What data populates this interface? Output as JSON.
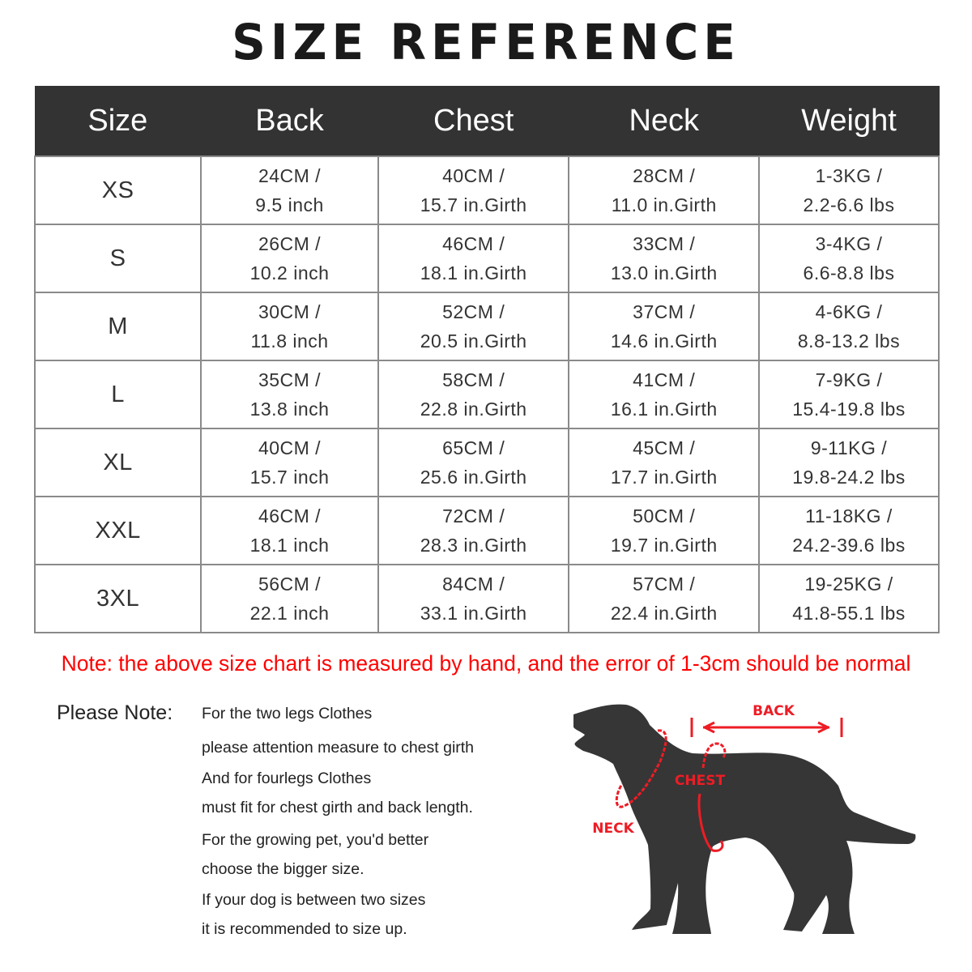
{
  "title": "SIZE REFERENCE",
  "table": {
    "headers": [
      "Size",
      "Back",
      "Chest",
      "Neck",
      "Weight"
    ],
    "rows": [
      {
        "size": "XS",
        "back": [
          "24CM /",
          "9.5 inch"
        ],
        "chest": [
          "40CM /",
          "15.7 in.Girth"
        ],
        "neck": [
          "28CM /",
          "11.0 in.Girth"
        ],
        "weight": [
          "1-3KG /",
          "2.2-6.6 lbs"
        ]
      },
      {
        "size": "S",
        "back": [
          "26CM /",
          "10.2 inch"
        ],
        "chest": [
          "46CM /",
          "18.1 in.Girth"
        ],
        "neck": [
          "33CM /",
          "13.0 in.Girth"
        ],
        "weight": [
          "3-4KG /",
          "6.6-8.8 lbs"
        ]
      },
      {
        "size": "M",
        "back": [
          "30CM /",
          "11.8 inch"
        ],
        "chest": [
          "52CM /",
          "20.5 in.Girth"
        ],
        "neck": [
          "37CM /",
          "14.6 in.Girth"
        ],
        "weight": [
          "4-6KG /",
          "8.8-13.2 lbs"
        ]
      },
      {
        "size": "L",
        "back": [
          "35CM /",
          "13.8 inch"
        ],
        "chest": [
          "58CM /",
          "22.8 in.Girth"
        ],
        "neck": [
          "41CM /",
          "16.1 in.Girth"
        ],
        "weight": [
          "7-9KG /",
          "15.4-19.8 lbs"
        ]
      },
      {
        "size": "XL",
        "back": [
          "40CM /",
          "15.7 inch"
        ],
        "chest": [
          "65CM /",
          "25.6 in.Girth"
        ],
        "neck": [
          "45CM /",
          "17.7 in.Girth"
        ],
        "weight": [
          "9-11KG /",
          "19.8-24.2 lbs"
        ]
      },
      {
        "size": "XXL",
        "back": [
          "46CM /",
          "18.1 inch"
        ],
        "chest": [
          "72CM /",
          "28.3 in.Girth"
        ],
        "neck": [
          "50CM /",
          "19.7 in.Girth"
        ],
        "weight": [
          "11-18KG /",
          "24.2-39.6 lbs"
        ]
      },
      {
        "size": "3XL",
        "back": [
          "56CM /",
          "22.1 inch"
        ],
        "chest": [
          "84CM /",
          "33.1 in.Girth"
        ],
        "neck": [
          "57CM /",
          "22.4 in.Girth"
        ],
        "weight": [
          "19-25KG /",
          "41.8-55.1 lbs"
        ]
      }
    ]
  },
  "note_red": "Note: the above size chart is measured by hand, and the error of 1-3cm should be normal",
  "please_note": {
    "label": "Please Note:",
    "lines": [
      "For the two legs Clothes",
      "please attention measure to chest girth",
      "And for fourlegs Clothes",
      "must fit for chest girth and back length.",
      "For the growing pet, you'd better",
      "choose the bigger size.",
      "If your dog is between two sizes",
      "it is recommended to size up."
    ]
  },
  "diagram": {
    "back_label": "BACK",
    "chest_label": "CHEST",
    "neck_label": "NECK",
    "silhouette_color": "#363636",
    "accent_color": "#ee1c25"
  }
}
